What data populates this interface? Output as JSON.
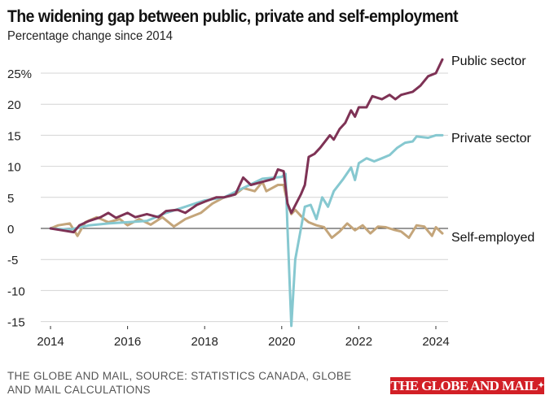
{
  "chart_data": {
    "type": "line",
    "title": "The widening gap between public, private and self-employment",
    "subtitle": "Percentage change since 2014",
    "xlabel": "",
    "ylabel": "",
    "xlim": [
      2014,
      2024.5
    ],
    "ylim": [
      -15,
      25
    ],
    "x_ticks": [
      2014,
      2016,
      2018,
      2020,
      2022,
      2024
    ],
    "x_tick_labels": [
      "2014",
      "2016",
      "2018",
      "2020",
      "2022",
      "2024"
    ],
    "y_ticks": [
      -15,
      -10,
      -5,
      0,
      5,
      10,
      15,
      20,
      25
    ],
    "y_tick_labels": [
      "-15",
      "-10",
      "-5",
      "0",
      "5",
      "10",
      "15",
      "20",
      "25%"
    ],
    "grid": true,
    "legend": "direct labels at right end of lines",
    "series": [
      {
        "name": "Public sector",
        "color": "#7e3255",
        "points": [
          [
            2014,
            0
          ],
          [
            2014.3,
            -0.3
          ],
          [
            2014.6,
            -0.6
          ],
          [
            2014.75,
            0.5
          ],
          [
            2015,
            1.2
          ],
          [
            2015.3,
            1.8
          ],
          [
            2015.5,
            2.5
          ],
          [
            2015.7,
            1.7
          ],
          [
            2016,
            2.5
          ],
          [
            2016.2,
            1.8
          ],
          [
            2016.5,
            2.3
          ],
          [
            2016.8,
            1.8
          ],
          [
            2017,
            2.8
          ],
          [
            2017.3,
            3.0
          ],
          [
            2017.5,
            2.5
          ],
          [
            2017.8,
            3.8
          ],
          [
            2018,
            4.3
          ],
          [
            2018.3,
            5.0
          ],
          [
            2018.5,
            5.0
          ],
          [
            2018.8,
            5.5
          ],
          [
            2019,
            8.2
          ],
          [
            2019.2,
            7.0
          ],
          [
            2019.5,
            7.5
          ],
          [
            2019.8,
            8.0
          ],
          [
            2019.9,
            9.5
          ],
          [
            2020.05,
            9.2
          ],
          [
            2020.15,
            4.0
          ],
          [
            2020.25,
            2.5
          ],
          [
            2020.5,
            5.5
          ],
          [
            2020.6,
            7.0
          ],
          [
            2020.7,
            11.5
          ],
          [
            2020.85,
            12.0
          ],
          [
            2021,
            13.0
          ],
          [
            2021.25,
            15.0
          ],
          [
            2021.35,
            14.3
          ],
          [
            2021.5,
            16.0
          ],
          [
            2021.65,
            17.0
          ],
          [
            2021.8,
            19.0
          ],
          [
            2021.9,
            18.0
          ],
          [
            2022,
            19.5
          ],
          [
            2022.2,
            19.5
          ],
          [
            2022.35,
            21.3
          ],
          [
            2022.6,
            20.8
          ],
          [
            2022.8,
            21.5
          ],
          [
            2022.95,
            20.8
          ],
          [
            2023.1,
            21.5
          ],
          [
            2023.4,
            22.0
          ],
          [
            2023.6,
            23.0
          ],
          [
            2023.8,
            24.5
          ],
          [
            2024,
            25.0
          ],
          [
            2024.17,
            27.2
          ]
        ]
      },
      {
        "name": "Private sector",
        "color": "#86c8d0",
        "points": [
          [
            2014,
            0
          ],
          [
            2014.5,
            -0.2
          ],
          [
            2015,
            0.5
          ],
          [
            2015.5,
            0.8
          ],
          [
            2016,
            1.0
          ],
          [
            2016.5,
            1.2
          ],
          [
            2017,
            2.5
          ],
          [
            2017.5,
            3.5
          ],
          [
            2018,
            4.5
          ],
          [
            2018.5,
            5.0
          ],
          [
            2019,
            6.5
          ],
          [
            2019.5,
            8.0
          ],
          [
            2020,
            8.3
          ],
          [
            2020.1,
            8.8
          ],
          [
            2020.15,
            0
          ],
          [
            2020.25,
            -15.7
          ],
          [
            2020.35,
            -5.0
          ],
          [
            2020.5,
            0
          ],
          [
            2020.6,
            3.5
          ],
          [
            2020.75,
            3.8
          ],
          [
            2020.9,
            1.5
          ],
          [
            2021.05,
            5.0
          ],
          [
            2021.2,
            3.5
          ],
          [
            2021.35,
            6.0
          ],
          [
            2021.6,
            8.0
          ],
          [
            2021.8,
            9.8
          ],
          [
            2021.9,
            7.8
          ],
          [
            2022,
            10.5
          ],
          [
            2022.2,
            11.3
          ],
          [
            2022.4,
            10.8
          ],
          [
            2022.6,
            11.3
          ],
          [
            2022.8,
            11.8
          ],
          [
            2023,
            13.0
          ],
          [
            2023.2,
            13.8
          ],
          [
            2023.4,
            14.0
          ],
          [
            2023.5,
            14.8
          ],
          [
            2023.8,
            14.6
          ],
          [
            2024,
            15.0
          ],
          [
            2024.17,
            15.0
          ]
        ]
      },
      {
        "name": "Self-employed",
        "color": "#c4a57a",
        "points": [
          [
            2014,
            0
          ],
          [
            2014.2,
            0.5
          ],
          [
            2014.5,
            0.8
          ],
          [
            2014.7,
            -1.2
          ],
          [
            2014.9,
            1.0
          ],
          [
            2015.2,
            1.8
          ],
          [
            2015.5,
            1.0
          ],
          [
            2015.8,
            1.5
          ],
          [
            2016,
            0.5
          ],
          [
            2016.3,
            1.5
          ],
          [
            2016.6,
            0.6
          ],
          [
            2016.9,
            1.8
          ],
          [
            2017.2,
            0.3
          ],
          [
            2017.5,
            1.5
          ],
          [
            2017.9,
            2.5
          ],
          [
            2018.2,
            4.0
          ],
          [
            2018.5,
            5.0
          ],
          [
            2018.8,
            5.5
          ],
          [
            2019,
            6.5
          ],
          [
            2019.3,
            6.0
          ],
          [
            2019.5,
            7.5
          ],
          [
            2019.6,
            6.0
          ],
          [
            2019.9,
            7.0
          ],
          [
            2020.05,
            7.0
          ],
          [
            2020.15,
            4.0
          ],
          [
            2020.25,
            2.3
          ],
          [
            2020.35,
            3.0
          ],
          [
            2020.5,
            2.0
          ],
          [
            2020.7,
            1.0
          ],
          [
            2020.9,
            0.5
          ],
          [
            2021.1,
            0.2
          ],
          [
            2021.3,
            -1.5
          ],
          [
            2021.5,
            -0.5
          ],
          [
            2021.7,
            0.8
          ],
          [
            2021.9,
            -0.3
          ],
          [
            2022.1,
            0.5
          ],
          [
            2022.3,
            -0.8
          ],
          [
            2022.5,
            0.3
          ],
          [
            2022.7,
            0.2
          ],
          [
            2022.9,
            -0.2
          ],
          [
            2023.1,
            -0.5
          ],
          [
            2023.3,
            -1.5
          ],
          [
            2023.5,
            0.5
          ],
          [
            2023.7,
            0.3
          ],
          [
            2023.9,
            -1.2
          ],
          [
            2024,
            0.2
          ],
          [
            2024.17,
            -0.8
          ]
        ]
      }
    ]
  },
  "footer": {
    "source": "THE GLOBE AND MAIL, SOURCE: STATISTICS CANADA, GLOBE AND MAIL CALCULATIONS",
    "logo": "THE GLOBE AND MAIL"
  }
}
